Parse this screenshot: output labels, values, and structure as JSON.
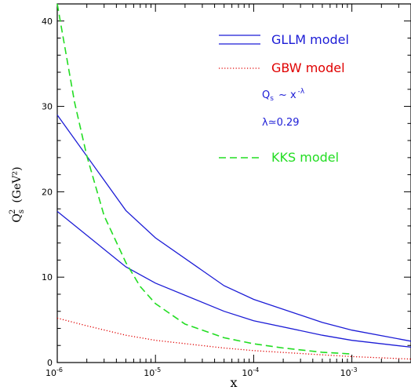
{
  "chart_data": {
    "type": "line",
    "xlabel": "x",
    "ylabel_main": "Q",
    "ylabel_sup": "2",
    "ylabel_sub": "s",
    "ylabel_unit": "(GeV²)",
    "x_scale": "log",
    "xlim": [
      1e-06,
      0.004
    ],
    "ylim": [
      0,
      42
    ],
    "y_ticks": [
      0,
      10,
      20,
      30,
      40
    ],
    "y_tick_labels": [
      "0",
      "10",
      "20",
      "30",
      "40"
    ],
    "x_ticks": [
      1e-06,
      1e-05,
      0.0001,
      0.001
    ],
    "x_tick_labels": [
      {
        "base": "10",
        "exp": "-6"
      },
      {
        "base": "10",
        "exp": "-5"
      },
      {
        "base": "10",
        "exp": "-4"
      },
      {
        "base": "10",
        "exp": "-3"
      }
    ],
    "series": [
      {
        "name": "GLLM model",
        "color": "#1c1cd6",
        "style": "solid",
        "x": [
          1e-06,
          5e-06,
          1e-05,
          5e-05,
          0.0001,
          0.0005,
          0.001,
          0.004
        ],
        "y": [
          29.0,
          17.8,
          14.6,
          9.0,
          7.4,
          4.7,
          3.8,
          2.5
        ]
      },
      {
        "name": "",
        "color": "#1c1cd6",
        "style": "solid",
        "x": [
          1e-06,
          5e-06,
          1e-05,
          5e-05,
          0.0001,
          0.0005,
          0.001,
          0.004
        ],
        "y": [
          17.7,
          11.2,
          9.3,
          6.0,
          4.9,
          3.2,
          2.6,
          1.8
        ]
      },
      {
        "name": "GBW model",
        "color": "#e00000",
        "style": "dotted",
        "x": [
          1e-06,
          2e-06,
          5e-06,
          1e-05,
          5e-05,
          0.0001,
          0.0005,
          0.001,
          0.004
        ],
        "y": [
          5.2,
          4.3,
          3.2,
          2.6,
          1.7,
          1.4,
          0.9,
          0.7,
          0.4
        ]
      },
      {
        "name": "KKS model",
        "color": "#22dd22",
        "style": "dashed",
        "x": [
          1e-06,
          1.5e-06,
          2e-06,
          3e-06,
          5e-06,
          7e-06,
          1e-05,
          2e-05,
          5e-05,
          0.0001,
          0.0002,
          0.0005,
          0.001
        ],
        "y": [
          42.0,
          30.5,
          24.2,
          17.2,
          11.7,
          8.9,
          6.9,
          4.5,
          2.9,
          2.2,
          1.7,
          1.2,
          1.0
        ]
      }
    ],
    "annotations": {
      "q_main": "Q",
      "q_sub": "s",
      "sim": "~ x",
      "exponent": "-λ",
      "lambda": "λ≃0.29"
    },
    "legend_position": "top-right"
  }
}
